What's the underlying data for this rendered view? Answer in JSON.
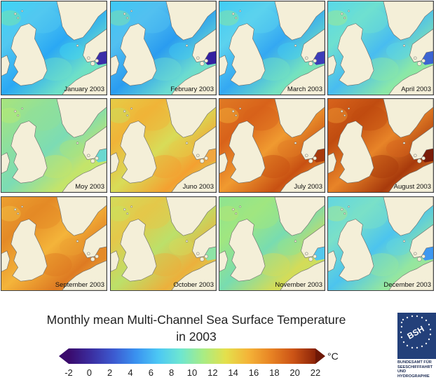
{
  "panels": [
    {
      "label": "January 2003",
      "sea_colors": [
        "#3fd4f5",
        "#52c8f0",
        "#2aa8f4",
        "#6ee0c8",
        "#7ce8a0"
      ],
      "baltic": "#3a2ea8"
    },
    {
      "label": "February 2003",
      "sea_colors": [
        "#3ec8f5",
        "#52c0f0",
        "#2a9cf0",
        "#6cdcd0",
        "#86e6a2"
      ],
      "baltic": "#3220a0"
    },
    {
      "label": "March 2003",
      "sea_colors": [
        "#40ccf4",
        "#5cd2ee",
        "#34a8f2",
        "#74e2c0",
        "#8ee894"
      ],
      "baltic": "#3c3cb8"
    },
    {
      "label": "April 2003",
      "sea_colors": [
        "#58d8e8",
        "#6ee0d0",
        "#48bcf0",
        "#8ae8a8",
        "#a4ec88"
      ],
      "baltic": "#3c64d2"
    },
    {
      "label": "Moy 2003",
      "sea_colors": [
        "#a8e47c",
        "#90e09a",
        "#7cdcb4",
        "#c4e46a",
        "#b8ec74"
      ],
      "baltic": "#6ad8d0"
    },
    {
      "label": "Juno 2003",
      "sea_colors": [
        "#e6cc46",
        "#f0b438",
        "#d8dc58",
        "#f4a030",
        "#c8e060"
      ],
      "baltic": "#f0a640"
    },
    {
      "label": "July 2003",
      "sea_colors": [
        "#e07a24",
        "#d8621a",
        "#f09a30",
        "#c85012",
        "#f4b43a"
      ],
      "baltic": "#a83a0c"
    },
    {
      "label": "August 2003",
      "sea_colors": [
        "#d8641c",
        "#c04c10",
        "#e88428",
        "#a83a0c",
        "#f09c34"
      ],
      "baltic": "#7a1c08"
    },
    {
      "label": "September 2003",
      "sea_colors": [
        "#eca030",
        "#e48a26",
        "#f4b43a",
        "#de7a22",
        "#f2c044"
      ],
      "baltic": "#e48a28"
    },
    {
      "label": "October 2003",
      "sea_colors": [
        "#d4dc5a",
        "#e4c84a",
        "#bce06a",
        "#ecb03c",
        "#c8e460"
      ],
      "baltic": "#8ee4a6"
    },
    {
      "label": "November 2003",
      "sea_colors": [
        "#8ee490",
        "#a0e680",
        "#78dcb0",
        "#d4dc58",
        "#b8e470"
      ],
      "baltic": "#54c8ec"
    },
    {
      "label": "December 2003",
      "sea_colors": [
        "#62d6e0",
        "#7ae0c8",
        "#4cc4ee",
        "#94e6a0",
        "#aee888"
      ],
      "baltic": "#3e98f0"
    }
  ],
  "title_line1": "Monthly mean Multi-Channel Sea Surface Temperature",
  "title_line2": "in 2003",
  "unit": "°C",
  "colorbar": {
    "ticks": [
      "-2",
      "0",
      "2",
      "4",
      "6",
      "8",
      "10",
      "12",
      "14",
      "16",
      "18",
      "20",
      "22"
    ],
    "min": -2,
    "max": 22,
    "stops": [
      "#3a0a6c",
      "#3b2ea0",
      "#3c5ad0",
      "#3a92f0",
      "#4cc8f4",
      "#6ee6d0",
      "#a8ec84",
      "#e4e04c",
      "#f4b438",
      "#e88424",
      "#cc5416",
      "#8c2408"
    ]
  },
  "logo": {
    "mark": "BSH",
    "lines": [
      "BUNDESAMT FÜR",
      "SEESCHIFFFAHRT",
      "UND",
      "HYDROGRAPHIE"
    ]
  },
  "colors": {
    "land": "#f4efd8",
    "coast": "#6a6a6a",
    "border": "#444444",
    "logo_bg": "#23407a"
  }
}
